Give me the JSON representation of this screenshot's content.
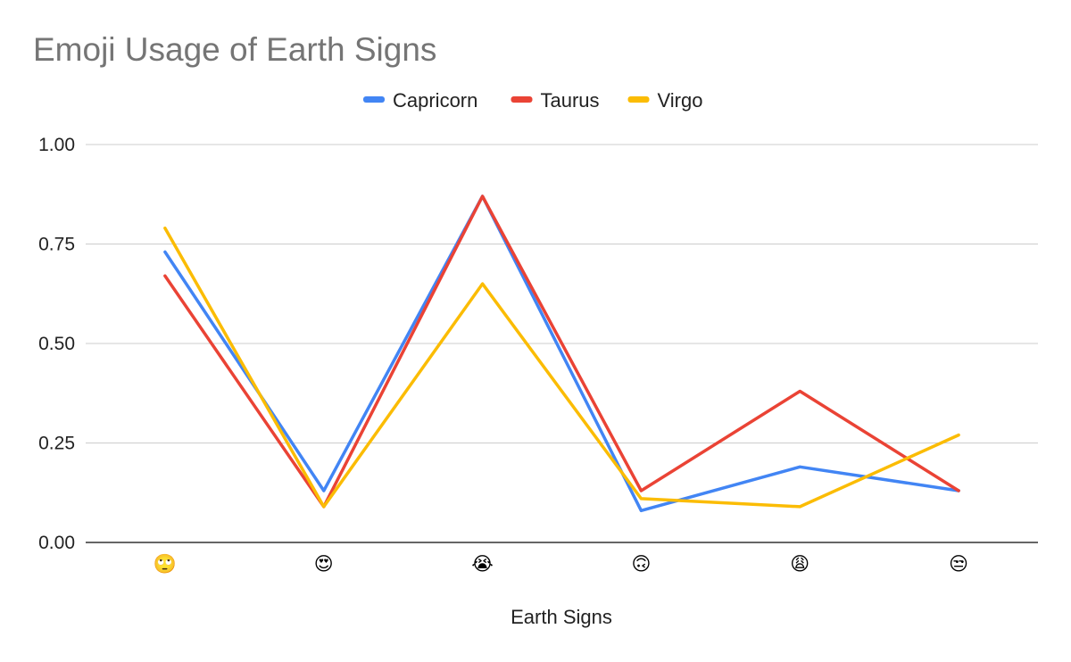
{
  "chart_data": {
    "type": "line",
    "title": "Emoji Usage of Earth Signs",
    "xlabel": "Earth Signs",
    "ylabel": "",
    "categories": [
      "🙄",
      "😍",
      "😭",
      "🙃",
      "😩",
      "😒"
    ],
    "ylim": [
      0,
      1
    ],
    "yticks": [
      "0.00",
      "0.25",
      "0.50",
      "0.75",
      "1.00"
    ],
    "legend_position": "top",
    "grid": true,
    "series": [
      {
        "name": "Capricorn",
        "color": "#4285f4",
        "values": [
          0.73,
          0.13,
          0.87,
          0.08,
          0.19,
          0.13
        ]
      },
      {
        "name": "Taurus",
        "color": "#ea4335",
        "values": [
          0.67,
          0.09,
          0.87,
          0.13,
          0.38,
          0.13
        ]
      },
      {
        "name": "Virgo",
        "color": "#fbbc04",
        "values": [
          0.79,
          0.09,
          0.65,
          0.11,
          0.09,
          0.27
        ]
      }
    ]
  }
}
